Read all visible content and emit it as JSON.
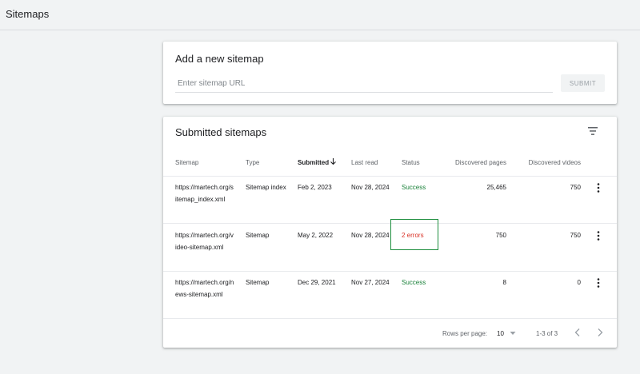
{
  "page": {
    "title": "Sitemaps"
  },
  "add_sitemap": {
    "title": "Add a new sitemap",
    "input_placeholder": "Enter sitemap URL",
    "input_value": "",
    "submit_label": "SUBMIT"
  },
  "submitted": {
    "title": "Submitted sitemaps",
    "headers": {
      "sitemap": "Sitemap",
      "type": "Type",
      "submitted": "Submitted",
      "last_read": "Last read",
      "status": "Status",
      "discovered_pages": "Discovered pages",
      "discovered_videos": "Discovered videos"
    },
    "rows": [
      {
        "sitemap": "https://martech.org/sitemap_index.xml",
        "type": "Sitemap index",
        "submitted": "Feb 2, 2023",
        "last_read": "Nov 28, 2024",
        "status": "Success",
        "pages": "25,465",
        "videos": "750"
      },
      {
        "sitemap": "https://martech.org/video-sitemap.xml",
        "type": "Sitemap",
        "submitted": "May 2, 2022",
        "last_read": "Nov 28, 2024",
        "status": "2 errors",
        "pages": "750",
        "videos": "750"
      },
      {
        "sitemap": "https://martech.org/news-sitemap.xml",
        "type": "Sitemap",
        "submitted": "Dec 29, 2021",
        "last_read": "Nov 27, 2024",
        "status": "Success",
        "pages": "8",
        "videos": "0"
      }
    ],
    "pagination": {
      "rows_per_page_label": "Rows per page:",
      "rows_per_page_value": "10",
      "range": "1-3 of 3"
    }
  },
  "colors": {
    "success": "#188038",
    "error": "#d93025",
    "highlight": "#1e8e3e"
  },
  "icons": {
    "filter": "filter-icon",
    "sort": "arrow-down-icon",
    "row_menu": "more-vert-icon",
    "dropdown": "caret-down-icon",
    "prev": "chevron-left-icon",
    "next": "chevron-right-icon"
  }
}
